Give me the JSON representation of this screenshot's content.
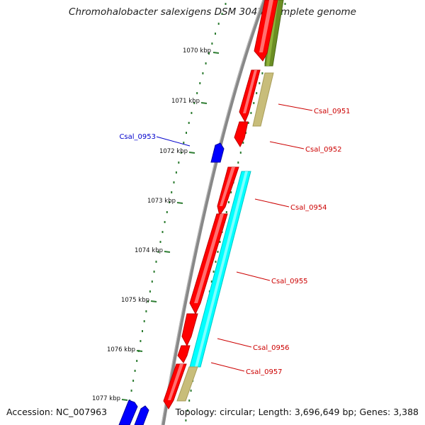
{
  "title": "Chromohalobacter salexigens DSM 3043, complete genome",
  "footer": {
    "accession": "Accession: NC_007963",
    "topology": "Topology: circular; Length: 3,696,649 bp; Genes: 3,388"
  },
  "ticks": [
    "1070 kbp",
    "1071 kbp",
    "1072 kbp",
    "1073 kbp",
    "1074 kbp",
    "1075 kbp",
    "1076 kbp",
    "1077 kbp"
  ],
  "gene_labels": [
    {
      "name": "Csal_0951",
      "color": "#cc0000"
    },
    {
      "name": "Csal_0952",
      "color": "#cc0000"
    },
    {
      "name": "Csal_0953",
      "color": "#0000cc"
    },
    {
      "name": "Csal_0954",
      "color": "#cc0000"
    },
    {
      "name": "Csal_0955",
      "color": "#cc0000"
    },
    {
      "name": "Csal_0956",
      "color": "#cc0000"
    },
    {
      "name": "Csal_0957",
      "color": "#cc0000"
    }
  ],
  "colors": {
    "backbone": "#888888",
    "gene": "#ff0000",
    "gene_rna": "#0000ff",
    "cog_olive": "#6b8e23",
    "cog_khaki": "#c8bd7a",
    "cog_cyan": "#00ffff",
    "gc_dots": "#2e7d32"
  }
}
